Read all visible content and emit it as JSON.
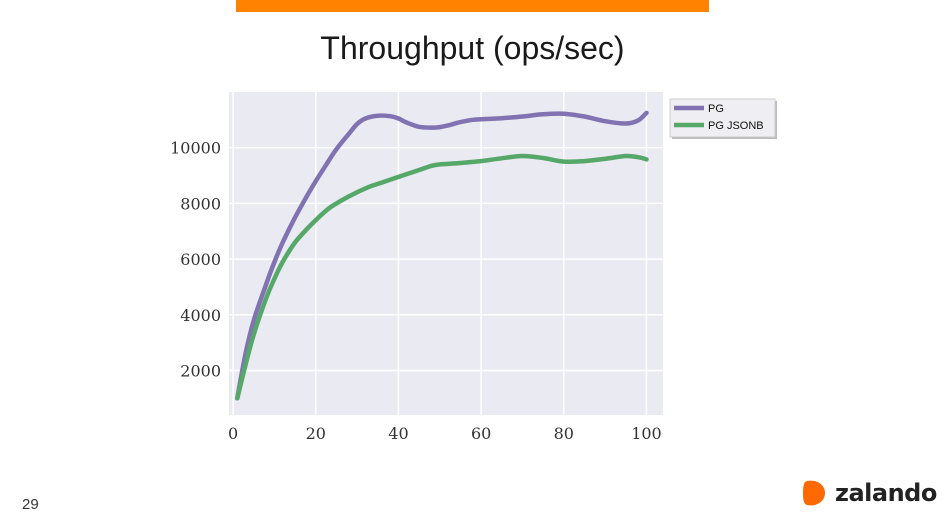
{
  "slide": {
    "title": "Throughput (ops/sec)",
    "page_number": "29",
    "brand": "zalando",
    "accent_color": "#ff8200"
  },
  "chart_data": {
    "type": "line",
    "title": "Throughput (ops/sec)",
    "xlabel": "",
    "ylabel": "",
    "xlim": [
      -1,
      104
    ],
    "ylim": [
      400,
      12000
    ],
    "xticks": [
      0,
      20,
      40,
      60,
      80,
      100
    ],
    "yticks": [
      2000,
      4000,
      6000,
      8000,
      10000
    ],
    "grid": true,
    "legend_position": "outside-top-right",
    "series": [
      {
        "name": "PG",
        "color": "#8172b2",
        "x": [
          1,
          3,
          5,
          8,
          10,
          12,
          15,
          18,
          20,
          23,
          25,
          28,
          30,
          32,
          35,
          38,
          40,
          42,
          45,
          48,
          50,
          52,
          55,
          58,
          60,
          65,
          70,
          75,
          80,
          85,
          90,
          95,
          98,
          100
        ],
        "values": [
          1000,
          2600,
          3800,
          5100,
          5900,
          6600,
          7500,
          8300,
          8800,
          9500,
          9950,
          10500,
          10850,
          11050,
          11150,
          11130,
          11050,
          10900,
          10750,
          10720,
          10740,
          10800,
          10920,
          11000,
          11020,
          11060,
          11120,
          11200,
          11220,
          11120,
          10950,
          10870,
          10980,
          11250
        ]
      },
      {
        "name": "PG JSONB",
        "color": "#55a868",
        "x": [
          1,
          3,
          5,
          8,
          10,
          12,
          15,
          18,
          20,
          23,
          25,
          28,
          30,
          33,
          35,
          40,
          42,
          45,
          48,
          50,
          55,
          60,
          65,
          70,
          75,
          80,
          85,
          90,
          95,
          98,
          100
        ],
        "values": [
          1000,
          2200,
          3300,
          4600,
          5300,
          5900,
          6600,
          7100,
          7400,
          7800,
          8000,
          8250,
          8400,
          8600,
          8700,
          8950,
          9050,
          9200,
          9350,
          9400,
          9450,
          9520,
          9620,
          9700,
          9630,
          9500,
          9520,
          9600,
          9700,
          9660,
          9580
        ]
      }
    ]
  }
}
